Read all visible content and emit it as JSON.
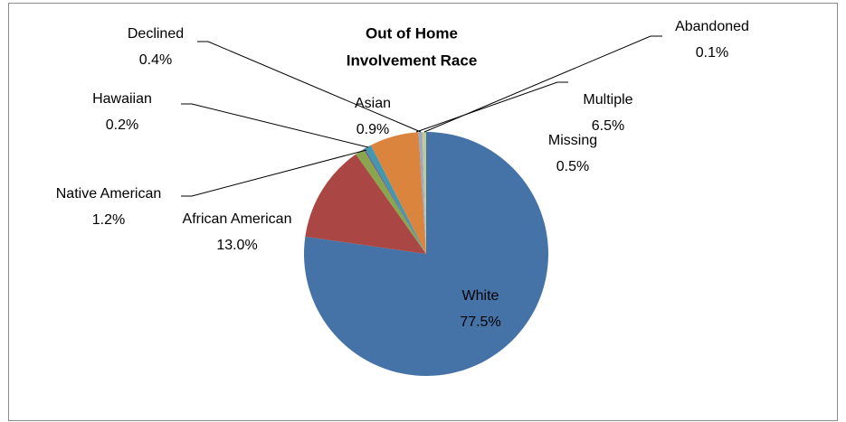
{
  "chart_data": {
    "type": "pie",
    "title": [
      "Out of Home",
      "Involvement Race"
    ],
    "categories": [
      "White",
      "African American",
      "Native American",
      "Hawaiian",
      "Asian",
      "Multiple",
      "Declined",
      "Abandoned",
      "Missing"
    ],
    "values": [
      77.5,
      13.0,
      1.2,
      0.2,
      0.9,
      6.5,
      0.4,
      0.1,
      0.5
    ],
    "value_labels": [
      "77.5%",
      "13.0%",
      "1.2%",
      "0.2%",
      "0.9%",
      "6.5%",
      "0.4%",
      "0.1%",
      "0.5%"
    ],
    "colors": [
      "#4572a7",
      "#aa4643",
      "#89a54e",
      "#71588f",
      "#4198af",
      "#db843d",
      "#93a9cf",
      "#d19392",
      "#b9cd96"
    ]
  }
}
